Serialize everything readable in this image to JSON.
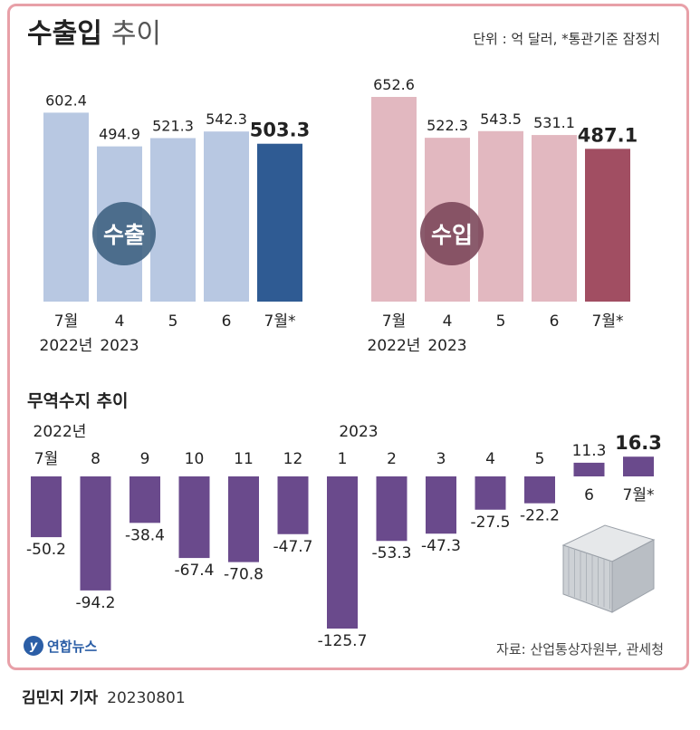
{
  "header": {
    "title_bold": "수출입",
    "title_light": "추이",
    "unit": "단위 : 억 달러, *통관기준 잠정치"
  },
  "colors": {
    "export_bar": "#b8c8e2",
    "export_highlight": "#2f5b93",
    "export_badge": "#3c6080",
    "import_bar": "#e2b8c0",
    "import_highlight": "#a14e62",
    "import_badge": "#7a4458",
    "balance_bar": "#6a4a8c",
    "frame": "#e8a0a8"
  },
  "chart_data": [
    {
      "type": "bar",
      "badge": "수출",
      "categories": [
        "7월\n2022년",
        "4\n2023",
        "5",
        "6",
        "7월*"
      ],
      "values": [
        602.4,
        494.9,
        521.3,
        542.3,
        503.3
      ],
      "value_labels": [
        "602.4",
        "494.9",
        "521.3",
        "542.3",
        "503.3"
      ],
      "highlight_index": 4
    },
    {
      "type": "bar",
      "badge": "수입",
      "categories": [
        "7월\n2022년",
        "4\n2023",
        "5",
        "6",
        "7월*"
      ],
      "values": [
        652.6,
        522.3,
        543.5,
        531.1,
        487.1
      ],
      "value_labels": [
        "652.6",
        "522.3",
        "543.5",
        "531.1",
        "487.1"
      ],
      "highlight_index": 4
    },
    {
      "type": "bar",
      "title": "무역수지 추이",
      "year_labels": [
        "2022년",
        "2023"
      ],
      "categories": [
        "7월",
        "8",
        "9",
        "10",
        "11",
        "12",
        "1",
        "2",
        "3",
        "4",
        "5",
        "6",
        "7월*"
      ],
      "values": [
        -50.2,
        -94.2,
        -38.4,
        -67.4,
        -70.8,
        -47.7,
        -125.7,
        -53.3,
        -47.3,
        -27.5,
        -22.2,
        11.3,
        16.3
      ],
      "value_labels": [
        "-50.2",
        "-94.2",
        "-38.4",
        "-67.4",
        "-70.8",
        "-47.7",
        "-125.7",
        "-53.3",
        "-47.3",
        "-27.5",
        "-22.2",
        "11.3",
        "16.3"
      ],
      "highlight_index": 12
    }
  ],
  "footer": {
    "logo_text": "연합뉴스",
    "source": "자료: 산업통상자원부, 관세청",
    "reporter": "김민지 기자",
    "date": "20230801"
  }
}
